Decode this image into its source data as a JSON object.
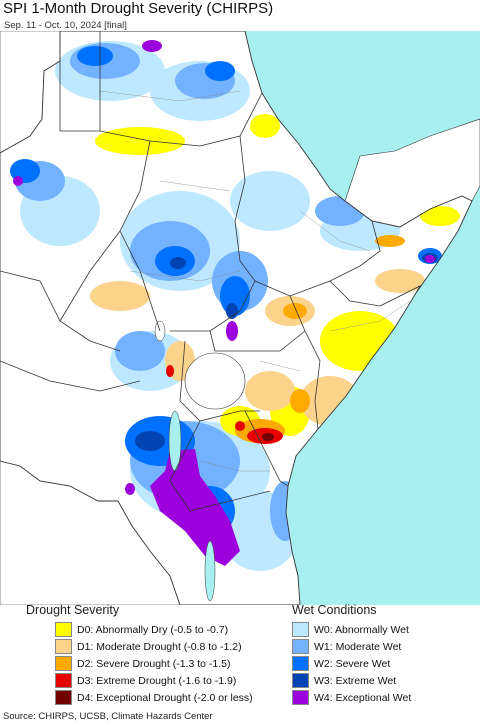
{
  "header": {
    "title": "SPI 1-Month Drought Severity (CHIRPS)",
    "subtitle": "Sep. 11 - Oct. 10, 2024 [final]"
  },
  "colors": {
    "ocean": "#a8f0f0",
    "land_base": "#ffffff",
    "outside": "#ffffff",
    "border": "#333333"
  },
  "legend": {
    "drought": {
      "title": "Drought Severity",
      "items": [
        {
          "label": "D0: Abnormally Dry (-0.5 to -0.7)",
          "color": "#ffff00"
        },
        {
          "label": "D1: Moderate Drought (-0.8 to -1.2)",
          "color": "#fcd38a"
        },
        {
          "label": "D2: Severe Drought (-1.3 to -1.5)",
          "color": "#ffaa00"
        },
        {
          "label": "D3: Extreme Drought (-1.6 to -1.9)",
          "color": "#e60000"
        },
        {
          "label": "D4: Exceptional Drought (-2.0 or less)",
          "color": "#730000"
        }
      ]
    },
    "wet": {
      "title": "Wet Conditions",
      "items": [
        {
          "label": "W0: Abnormally Wet",
          "color": "#bee8ff"
        },
        {
          "label": "W1: Moderate Wet",
          "color": "#73b2ff"
        },
        {
          "label": "W2: Severe Wet",
          "color": "#0070ff"
        },
        {
          "label": "W3: Extreme Wet",
          "color": "#0044b4"
        },
        {
          "label": "W4: Exceptional Wet",
          "color": "#9c00dc"
        }
      ]
    }
  },
  "footer": {
    "source": "Source: CHIRPS, UCSB, Climate Hazards Center"
  }
}
